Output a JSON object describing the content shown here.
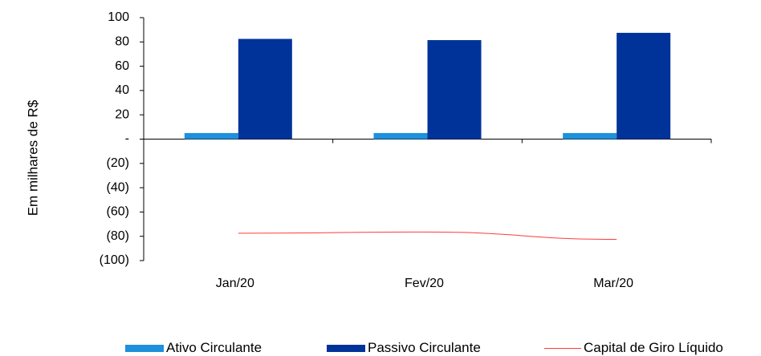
{
  "chart_data": {
    "type": "bar",
    "categories": [
      "Jan/20",
      "Fev/20",
      "Mar/20"
    ],
    "series": [
      {
        "name": "Ativo Circulante",
        "kind": "bar",
        "color": "#1E90DC",
        "values": [
          5,
          5,
          5
        ]
      },
      {
        "name": "Passivo Circulante",
        "kind": "bar",
        "color": "#003399",
        "values": [
          82.5,
          81.5,
          87.5
        ]
      },
      {
        "name": "Capital de Giro Líquido",
        "kind": "line",
        "color": "#FF3B3B",
        "values": [
          -77.5,
          -76.5,
          -82.5
        ]
      }
    ],
    "ylabel": "Em milhares de R$",
    "ylim": [
      -100,
      100
    ],
    "yticks": [
      100,
      80,
      60,
      40,
      20,
      0,
      -20,
      -40,
      -60,
      -80,
      -100
    ],
    "ytick_labels": [
      "100",
      "80",
      "60",
      "40",
      "20",
      "-",
      "(20)",
      "(40)",
      "(60)",
      "(80)",
      "(100)"
    ],
    "grid": false,
    "legend_position": "bottom"
  }
}
